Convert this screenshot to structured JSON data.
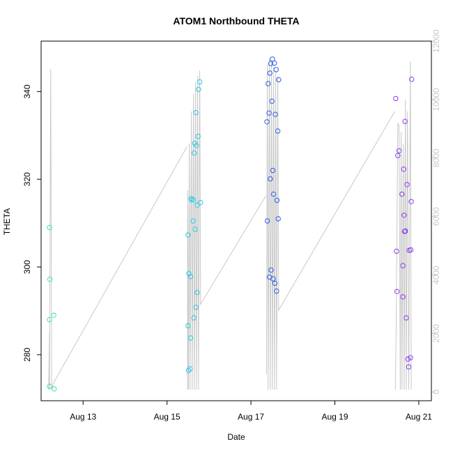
{
  "chart_data": {
    "type": "scatter",
    "title": "ATOM1 Northbound THETA",
    "xlabel": "Date",
    "ylabel": "THETA",
    "x_tick_labels": [
      "Aug 13",
      "Aug 15",
      "Aug 17",
      "Aug 19",
      "Aug 21"
    ],
    "x_ticks": [
      13,
      15,
      17,
      19,
      21
    ],
    "xlim": [
      12.0,
      21.3
    ],
    "ylim": [
      269.5,
      351.5
    ],
    "y_ticks": [
      280,
      300,
      320,
      340
    ],
    "y_tick_labels": [
      "280",
      "300",
      "320",
      "340"
    ],
    "y2lim": [
      -300,
      12000
    ],
    "y2_ticks": [
      0,
      2000,
      4000,
      6000,
      8000,
      10000,
      12000
    ],
    "y2_tick_labels": [
      "0",
      "2000",
      "4000",
      "6000",
      "8000",
      "10000",
      "12000"
    ],
    "grid": false,
    "series": [
      {
        "color": "#3ee4b4",
        "points": [
          [
            12.2,
            309.0
          ],
          [
            12.21,
            297.2
          ],
          [
            12.2,
            288.0
          ],
          [
            12.2,
            272.8
          ],
          [
            12.3,
            289.0
          ],
          [
            12.31,
            272.2
          ]
        ]
      },
      {
        "color": "#2bc8e6",
        "points": [
          [
            15.5,
            307.3
          ],
          [
            15.5,
            286.6
          ],
          [
            15.52,
            298.5
          ],
          [
            15.51,
            276.4
          ],
          [
            15.55,
            276.8
          ],
          [
            15.56,
            283.8
          ],
          [
            15.56,
            297.8
          ],
          [
            15.57,
            315.6
          ],
          [
            15.59,
            315.3
          ],
          [
            15.63,
            315.3
          ],
          [
            15.62,
            310.5
          ],
          [
            15.64,
            288.4
          ],
          [
            15.65,
            326.0
          ],
          [
            15.66,
            328.2
          ],
          [
            15.67,
            308.6
          ],
          [
            15.69,
            290.8
          ],
          [
            15.69,
            335.2
          ],
          [
            15.7,
            327.7
          ],
          [
            15.72,
            294.2
          ],
          [
            15.72,
            314.1
          ],
          [
            15.74,
            329.8
          ],
          [
            15.75,
            340.5
          ],
          [
            15.78,
            342.2
          ],
          [
            15.8,
            314.7
          ]
        ]
      },
      {
        "color": "#2f5fea",
        "points": [
          [
            17.38,
            333.1
          ],
          [
            17.39,
            310.5
          ],
          [
            17.41,
            341.8
          ],
          [
            17.43,
            335.1
          ],
          [
            17.44,
            297.7
          ],
          [
            17.45,
            344.2
          ],
          [
            17.46,
            320.1
          ],
          [
            17.47,
            346.4
          ],
          [
            17.48,
            299.3
          ],
          [
            17.5,
            337.8
          ],
          [
            17.51,
            347.4
          ],
          [
            17.52,
            322.0
          ],
          [
            17.53,
            297.3
          ],
          [
            17.54,
            316.6
          ],
          [
            17.56,
            346.5
          ],
          [
            17.57,
            296.3
          ],
          [
            17.58,
            334.8
          ],
          [
            17.6,
            345.0
          ],
          [
            17.61,
            294.5
          ],
          [
            17.62,
            315.2
          ],
          [
            17.64,
            331.0
          ],
          [
            17.66,
            342.7
          ],
          [
            17.65,
            311.0
          ]
        ]
      },
      {
        "color": "#8a3ef0",
        "points": [
          [
            20.45,
            338.4
          ],
          [
            20.47,
            303.6
          ],
          [
            20.48,
            294.4
          ],
          [
            20.5,
            325.4
          ],
          [
            20.53,
            326.5
          ],
          [
            20.6,
            316.6
          ],
          [
            20.62,
            300.3
          ],
          [
            20.62,
            293.2
          ],
          [
            20.64,
            322.3
          ],
          [
            20.65,
            311.8
          ],
          [
            20.66,
            308.1
          ],
          [
            20.67,
            333.2
          ],
          [
            20.68,
            308.2
          ],
          [
            20.7,
            288.4
          ],
          [
            20.72,
            318.8
          ],
          [
            20.74,
            279.0
          ],
          [
            20.76,
            277.2
          ],
          [
            20.77,
            303.8
          ],
          [
            20.8,
            279.3
          ],
          [
            20.81,
            303.9
          ],
          [
            20.82,
            314.9
          ],
          [
            20.83,
            342.8
          ]
        ]
      }
    ],
    "line_series": {
      "color": "#c8c8c8",
      "axis": "right",
      "segments": [
        [
          [
            12.18,
            80
          ],
          [
            12.2,
            2100
          ],
          [
            12.2,
            80
          ],
          [
            12.23,
            11050
          ],
          [
            12.25,
            80
          ],
          [
            12.3,
            320
          ],
          [
            15.48,
            8400
          ]
        ],
        [
          [
            15.49,
            80
          ],
          [
            15.49,
            6900
          ],
          [
            15.51,
            80
          ],
          [
            15.53,
            8500
          ],
          [
            15.55,
            80
          ],
          [
            15.58,
            9600
          ],
          [
            15.6,
            80
          ],
          [
            15.63,
            10200
          ],
          [
            15.65,
            80
          ],
          [
            15.68,
            10600
          ],
          [
            15.7,
            80
          ],
          [
            15.73,
            10800
          ],
          [
            15.75,
            80
          ],
          [
            15.78,
            11000
          ],
          [
            15.8,
            3000
          ],
          [
            17.35,
            6700
          ]
        ],
        [
          [
            17.37,
            600
          ],
          [
            17.39,
            11200
          ],
          [
            17.41,
            80
          ],
          [
            17.44,
            11400
          ],
          [
            17.46,
            80
          ],
          [
            17.49,
            11300
          ],
          [
            17.51,
            80
          ],
          [
            17.54,
            11100
          ],
          [
            17.56,
            80
          ],
          [
            17.59,
            11000
          ],
          [
            17.61,
            80
          ],
          [
            17.64,
            10800
          ],
          [
            17.66,
            2800
          ],
          [
            20.43,
            9600
          ]
        ],
        [
          [
            20.44,
            80
          ],
          [
            20.46,
            2000
          ],
          [
            20.5,
            9200
          ],
          [
            20.53,
            9100
          ],
          [
            20.56,
            80
          ],
          [
            20.58,
            8900
          ],
          [
            20.6,
            80
          ],
          [
            20.63,
            8500
          ],
          [
            20.65,
            80
          ],
          [
            20.68,
            10000
          ],
          [
            20.7,
            80
          ],
          [
            20.73,
            9600
          ],
          [
            20.76,
            80
          ],
          [
            20.8,
            11300
          ],
          [
            20.82,
            80
          ]
        ]
      ]
    }
  }
}
